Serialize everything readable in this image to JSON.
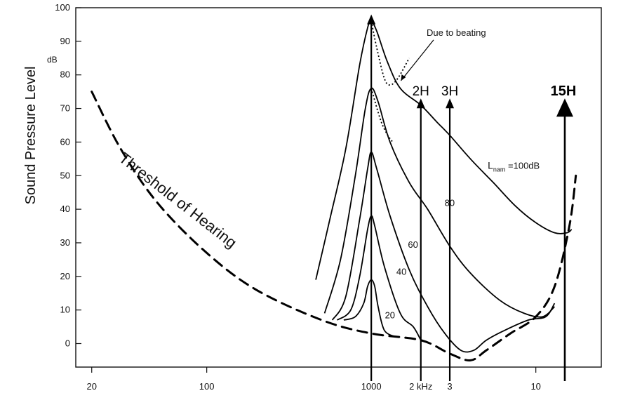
{
  "chart_data": {
    "type": "line",
    "title": "",
    "ylabel": "Sound Pressure Level",
    "y_unit": "dB",
    "xlabel": "",
    "x_scale": "log",
    "xlim_hz": [
      16,
      25000
    ],
    "ylim": [
      -7,
      100
    ],
    "y_ticks": [
      0,
      10,
      20,
      30,
      40,
      50,
      60,
      70,
      80,
      90,
      100
    ],
    "x_ticks": [
      {
        "hz": 20,
        "label": "20"
      },
      {
        "hz": 100,
        "label": "100"
      },
      {
        "hz": 1000,
        "label": "1000"
      },
      {
        "hz": 2000,
        "label": "2 kHz"
      },
      {
        "hz": 3000,
        "label": "3"
      },
      {
        "hz": 10000,
        "label": "10"
      }
    ],
    "threshold": {
      "label": "Threshold of Hearing",
      "points": [
        [
          20,
          75
        ],
        [
          30,
          58
        ],
        [
          50,
          42
        ],
        [
          100,
          27
        ],
        [
          200,
          16
        ],
        [
          500,
          7
        ],
        [
          1000,
          3
        ],
        [
          2000,
          1
        ],
        [
          3000,
          -3
        ],
        [
          4000,
          -5
        ],
        [
          5000,
          -2
        ],
        [
          7000,
          3
        ],
        [
          10000,
          8
        ],
        [
          13000,
          17
        ],
        [
          16000,
          35
        ],
        [
          17500,
          50
        ]
      ]
    },
    "masking_series": [
      {
        "name": "20",
        "label_at": [
          1210,
          7.5
        ],
        "points": [
          [
            680,
            7
          ],
          [
            800,
            8
          ],
          [
            900,
            12
          ],
          [
            950,
            17
          ],
          [
            1000,
            19
          ],
          [
            1050,
            17
          ],
          [
            1100,
            11
          ],
          [
            1200,
            4
          ],
          [
            1400,
            2
          ]
        ]
      },
      {
        "name": "40",
        "label_at": [
          1420,
          20.5
        ],
        "points": [
          [
            620,
            7
          ],
          [
            750,
            10
          ],
          [
            850,
            20
          ],
          [
            950,
            34
          ],
          [
            1000,
            38
          ],
          [
            1050,
            35
          ],
          [
            1200,
            23
          ],
          [
            1500,
            9
          ],
          [
            1800,
            5
          ],
          [
            2000,
            1
          ]
        ]
      },
      {
        "name": "60",
        "label_at": [
          1670,
          28.5
        ],
        "points": [
          [
            580,
            7
          ],
          [
            700,
            14
          ],
          [
            850,
            37
          ],
          [
            950,
            52
          ],
          [
            1000,
            57
          ],
          [
            1080,
            52
          ],
          [
            1300,
            38
          ],
          [
            1700,
            22
          ],
          [
            2200,
            11
          ],
          [
            2800,
            3
          ],
          [
            3500,
            -2
          ],
          [
            4200,
            -2
          ],
          [
            5000,
            1
          ],
          [
            6500,
            4
          ],
          [
            9000,
            7
          ],
          [
            11500,
            8
          ],
          [
            13000,
            12
          ]
        ]
      },
      {
        "name": "80",
        "label_at": [
          2790,
          41
        ],
        "points": [
          [
            520,
            9
          ],
          [
            650,
            25
          ],
          [
            800,
            50
          ],
          [
            920,
            70
          ],
          [
            1000,
            76
          ],
          [
            1100,
            72
          ],
          [
            1300,
            60
          ],
          [
            1700,
            48
          ],
          [
            2200,
            40
          ],
          [
            3000,
            29
          ],
          [
            4000,
            21
          ],
          [
            6000,
            13
          ],
          [
            8500,
            9
          ],
          [
            11000,
            8
          ],
          [
            13000,
            11
          ]
        ]
      },
      {
        "name": "100",
        "label_parts": [
          "L",
          "nam",
          " =100dB"
        ],
        "label_at": [
          5100,
          52
        ],
        "points": [
          [
            460,
            19
          ],
          [
            560,
            37
          ],
          [
            700,
            58
          ],
          [
            850,
            83
          ],
          [
            950,
            94
          ],
          [
            1000,
            96
          ],
          [
            1080,
            93
          ],
          [
            1250,
            84
          ],
          [
            1500,
            76
          ],
          [
            2000,
            71
          ],
          [
            2500,
            66
          ],
          [
            3000,
            62
          ],
          [
            4000,
            55
          ],
          [
            5500,
            48
          ],
          [
            7500,
            41
          ],
          [
            10000,
            36
          ],
          [
            13000,
            33
          ],
          [
            15500,
            33
          ],
          [
            16500,
            34
          ]
        ]
      }
    ],
    "beating_dips": [
      {
        "series": "100",
        "points": [
          [
            1000,
            96
          ],
          [
            1080,
            88
          ],
          [
            1200,
            79
          ],
          [
            1300,
            77
          ],
          [
            1450,
            79
          ],
          [
            1700,
            85
          ]
        ]
      },
      {
        "series": "80",
        "points": [
          [
            1000,
            76
          ],
          [
            1150,
            66
          ],
          [
            1300,
            61
          ],
          [
            1370,
            60
          ]
        ]
      }
    ],
    "annotation": {
      "text": "Due to beating",
      "at": [
        2300,
        90
      ],
      "arrow_to": [
        1400,
        77
      ]
    },
    "harmonic_markers": [
      {
        "label": "",
        "hz": 1000,
        "top": 98,
        "bold": false
      },
      {
        "label": "2H",
        "hz": 2000,
        "top": 73,
        "bold": false
      },
      {
        "label": "3H",
        "hz": 3000,
        "top": 73,
        "bold": false
      },
      {
        "label": "15H",
        "hz": 15000,
        "top": 73,
        "bold": true
      }
    ]
  }
}
